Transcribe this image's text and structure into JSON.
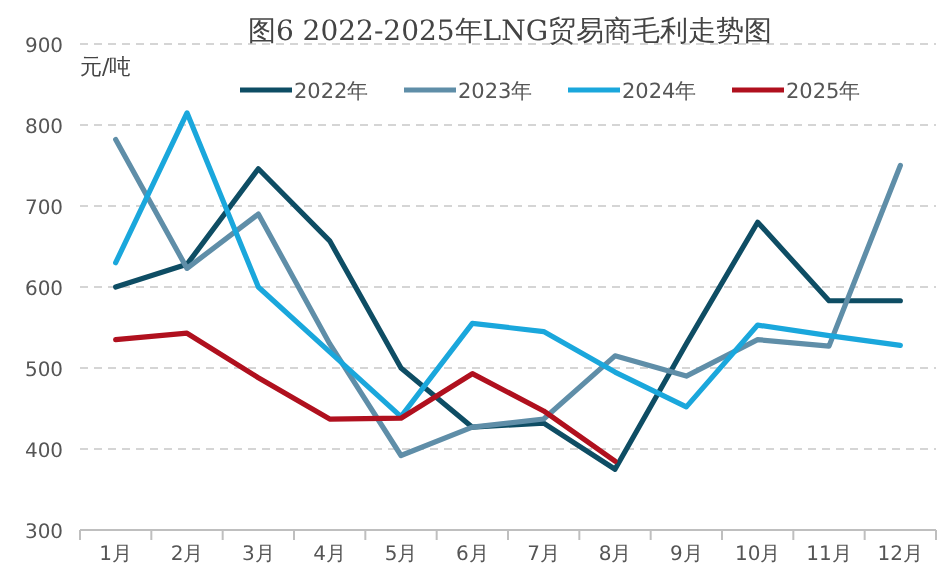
{
  "chart_data": {
    "type": "line",
    "title": "图6 2022-2025年LNG贸易商毛利走势图",
    "ylabel": "元/吨",
    "categories": [
      "1月",
      "2月",
      "3月",
      "4月",
      "5月",
      "6月",
      "7月",
      "8月",
      "9月",
      "10月",
      "11月",
      "12月"
    ],
    "series": [
      {
        "name": "2022年",
        "color": "#0e4d64",
        "values": [
          600,
          628,
          746,
          657,
          500,
          427,
          432,
          375,
          530,
          680,
          583,
          583
        ]
      },
      {
        "name": "2023年",
        "color": "#5f8ea8",
        "values": [
          782,
          623,
          690,
          530,
          392,
          427,
          437,
          515,
          490,
          535,
          527,
          750
        ]
      },
      {
        "name": "2024年",
        "color": "#1aa7dc",
        "values": [
          630,
          815,
          600,
          520,
          440,
          555,
          545,
          495,
          452,
          553,
          540,
          528
        ]
      },
      {
        "name": "2025年",
        "color": "#b0101e",
        "values": [
          535,
          543,
          488,
          437,
          438,
          493,
          447,
          385,
          null,
          null,
          null,
          null
        ]
      }
    ],
    "ylim": [
      300,
      900
    ],
    "yticks": [
      300,
      400,
      500,
      600,
      700,
      800,
      900
    ],
    "grid": "y",
    "legend": "top"
  }
}
